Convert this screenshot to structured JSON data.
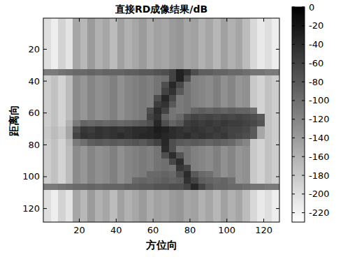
{
  "chart_data": {
    "type": "heatmap",
    "title": "直接RD成像结果/dB",
    "x_label": "方位向",
    "y_label": "距离向",
    "xlim": [
      0.5,
      128.5
    ],
    "ylim": [
      128.5,
      0.5
    ],
    "xticks": [
      20,
      40,
      60,
      80,
      100,
      120
    ],
    "yticks": [
      20,
      40,
      60,
      80,
      100,
      120
    ],
    "x": [
      2.5,
      6.5,
      10.5,
      14.5,
      18.5,
      22.5,
      26.5,
      30.5,
      34.5,
      38.5,
      42.5,
      46.5,
      50.5,
      54.5,
      58.5,
      62.5,
      66.5,
      70.5,
      74.5,
      78.5,
      82.5,
      86.5,
      90.5,
      94.5,
      98.5,
      102.5,
      106.5,
      110.5,
      114.5,
      118.5,
      122.5,
      126.5
    ],
    "y": [
      2.5,
      6.5,
      10.5,
      14.5,
      18.5,
      22.5,
      26.5,
      30.5,
      34.5,
      38.5,
      42.5,
      46.5,
      50.5,
      54.5,
      58.5,
      62.5,
      66.5,
      70.5,
      74.5,
      78.5,
      82.5,
      86.5,
      90.5,
      94.5,
      98.5,
      102.5,
      106.5,
      110.5,
      114.5,
      118.5,
      122.5,
      126.5
    ],
    "zlim": [
      -230,
      0
    ],
    "zticks": [
      0,
      -20,
      -40,
      -60,
      -80,
      -100,
      -120,
      -140,
      -160,
      -180,
      -200,
      -220
    ],
    "z": [
      [
        -200,
        -215,
        -190,
        -205,
        -150,
        -165,
        -140,
        -160,
        -150,
        -170,
        -145,
        -160,
        -150,
        -140,
        -155,
        -145,
        -150,
        -140,
        -135,
        -150,
        -145,
        -160,
        -150,
        -165,
        -145,
        -160,
        -150,
        -170,
        -195,
        -210,
        -200,
        -215
      ],
      [
        -200,
        -215,
        -190,
        -205,
        -150,
        -165,
        -140,
        -160,
        -150,
        -170,
        -145,
        -160,
        -150,
        -140,
        -155,
        -145,
        -150,
        -140,
        -135,
        -150,
        -145,
        -160,
        -150,
        -165,
        -145,
        -160,
        -150,
        -170,
        -195,
        -210,
        -200,
        -215
      ],
      [
        -200,
        -215,
        -190,
        -205,
        -150,
        -165,
        -140,
        -160,
        -150,
        -170,
        -145,
        -160,
        -150,
        -140,
        -155,
        -145,
        -150,
        -140,
        -135,
        -150,
        -145,
        -160,
        -150,
        -165,
        -145,
        -160,
        -150,
        -170,
        -195,
        -210,
        -200,
        -215
      ],
      [
        -200,
        -215,
        -190,
        -205,
        -150,
        -165,
        -140,
        -160,
        -150,
        -170,
        -145,
        -160,
        -150,
        -140,
        -155,
        -145,
        -150,
        -140,
        -135,
        -150,
        -145,
        -160,
        -150,
        -165,
        -145,
        -160,
        -150,
        -170,
        -195,
        -210,
        -200,
        -215
      ],
      [
        -200,
        -215,
        -190,
        -205,
        -150,
        -165,
        -140,
        -160,
        -150,
        -170,
        -145,
        -160,
        -150,
        -140,
        -155,
        -145,
        -150,
        -140,
        -135,
        -150,
        -145,
        -160,
        -150,
        -165,
        -145,
        -160,
        -150,
        -170,
        -195,
        -210,
        -200,
        -215
      ],
      [
        -200,
        -215,
        -190,
        -205,
        -150,
        -165,
        -140,
        -160,
        -150,
        -170,
        -145,
        -160,
        -150,
        -140,
        -155,
        -145,
        -150,
        -140,
        -135,
        -150,
        -145,
        -160,
        -150,
        -165,
        -145,
        -160,
        -150,
        -170,
        -195,
        -210,
        -200,
        -215
      ],
      [
        -200,
        -215,
        -190,
        -205,
        -150,
        -165,
        -140,
        -160,
        -150,
        -170,
        -145,
        -160,
        -150,
        -140,
        -155,
        -145,
        -150,
        -140,
        -135,
        -150,
        -145,
        -160,
        -150,
        -165,
        -145,
        -160,
        -150,
        -170,
        -195,
        -210,
        -200,
        -215
      ],
      [
        -200,
        -215,
        -190,
        -205,
        -150,
        -165,
        -140,
        -160,
        -150,
        -170,
        -145,
        -160,
        -150,
        -140,
        -155,
        -145,
        -150,
        -140,
        -135,
        -150,
        -145,
        -160,
        -150,
        -165,
        -145,
        -160,
        -150,
        -170,
        -195,
        -210,
        -200,
        -215
      ],
      [
        -110,
        -110,
        -105,
        -100,
        -95,
        -95,
        -90,
        -95,
        -90,
        -90,
        -90,
        -85,
        -85,
        -80,
        -80,
        -75,
        -70,
        -60,
        -30,
        -45,
        -70,
        -85,
        -85,
        -90,
        -90,
        -95,
        -95,
        -100,
        -105,
        -105,
        -110,
        -110
      ],
      [
        -185,
        -175,
        -190,
        -170,
        -125,
        -135,
        -120,
        -130,
        -125,
        -115,
        -130,
        -120,
        -115,
        -110,
        -115,
        -105,
        -100,
        -60,
        -30,
        -70,
        -115,
        -120,
        -125,
        -115,
        -130,
        -120,
        -135,
        -130,
        -180,
        -190,
        -175,
        -185
      ],
      [
        -185,
        -175,
        -190,
        -170,
        -125,
        -135,
        -120,
        -130,
        -125,
        -115,
        -130,
        -120,
        -115,
        -110,
        -115,
        -105,
        -70,
        -35,
        -65,
        -105,
        -115,
        -120,
        -125,
        -115,
        -130,
        -120,
        -135,
        -130,
        -180,
        -190,
        -175,
        -185
      ],
      [
        -185,
        -175,
        -190,
        -170,
        -125,
        -135,
        -120,
        -130,
        -125,
        -115,
        -130,
        -120,
        -115,
        -110,
        -115,
        -105,
        -60,
        -45,
        -80,
        -105,
        -115,
        -120,
        -125,
        -115,
        -130,
        -120,
        -135,
        -130,
        -180,
        -190,
        -175,
        -185
      ],
      [
        -185,
        -175,
        -190,
        -170,
        -125,
        -135,
        -120,
        -130,
        -125,
        -115,
        -130,
        -120,
        -115,
        -110,
        -115,
        -70,
        -35,
        -65,
        -110,
        -105,
        -115,
        -120,
        -125,
        -115,
        -130,
        -120,
        -135,
        -130,
        -180,
        -190,
        -175,
        -185
      ],
      [
        -185,
        -175,
        -190,
        -170,
        -125,
        -135,
        -120,
        -130,
        -125,
        -115,
        -130,
        -120,
        -115,
        -110,
        -115,
        -55,
        -45,
        -80,
        -110,
        -105,
        -115,
        -120,
        -125,
        -115,
        -130,
        -120,
        -135,
        -130,
        -180,
        -190,
        -175,
        -185
      ],
      [
        -185,
        -175,
        -190,
        -170,
        -125,
        -135,
        -120,
        -130,
        -125,
        -115,
        -130,
        -120,
        -115,
        -110,
        -70,
        -40,
        -60,
        -105,
        -110,
        -105,
        -90,
        -85,
        -90,
        -85,
        -90,
        -85,
        -90,
        -90,
        -100,
        -190,
        -175,
        -185
      ],
      [
        -185,
        -175,
        -190,
        -170,
        -125,
        -135,
        -120,
        -130,
        -125,
        -115,
        -130,
        -120,
        -115,
        -110,
        -60,
        -45,
        -90,
        -105,
        -95,
        -70,
        -60,
        -65,
        -60,
        -65,
        -60,
        -65,
        -60,
        -65,
        -70,
        -80,
        -175,
        -185
      ],
      [
        -185,
        -175,
        -190,
        -160,
        -110,
        -90,
        -95,
        -90,
        -95,
        -90,
        -95,
        -90,
        -85,
        -80,
        -70,
        -35,
        -70,
        -90,
        -80,
        -55,
        -50,
        -55,
        -50,
        -55,
        -50,
        -55,
        -55,
        -60,
        -65,
        -75,
        -175,
        -185
      ],
      [
        -180,
        -170,
        -180,
        -150,
        -70,
        -50,
        -55,
        -45,
        -50,
        -45,
        -50,
        -45,
        -40,
        -40,
        -35,
        -25,
        -30,
        -40,
        -45,
        -50,
        -45,
        -50,
        -55,
        -50,
        -55,
        -60,
        -60,
        -65,
        -80,
        -150,
        -175,
        -185
      ],
      [
        -180,
        -170,
        -180,
        -150,
        -60,
        -45,
        -50,
        -45,
        -50,
        -45,
        -40,
        -45,
        -40,
        -35,
        -35,
        -30,
        -35,
        -40,
        -45,
        -40,
        -50,
        -45,
        -50,
        -55,
        -50,
        -60,
        -65,
        -70,
        -80,
        -150,
        -175,
        -185
      ],
      [
        -185,
        -175,
        -190,
        -165,
        -110,
        -100,
        -85,
        -80,
        -85,
        -80,
        -85,
        -80,
        -75,
        -80,
        -70,
        -60,
        -35,
        -70,
        -80,
        -85,
        -80,
        -85,
        -90,
        -85,
        -90,
        -95,
        -110,
        -120,
        -180,
        -190,
        -175,
        -185
      ],
      [
        -185,
        -175,
        -190,
        -170,
        -125,
        -135,
        -120,
        -130,
        -125,
        -115,
        -130,
        -120,
        -115,
        -110,
        -115,
        -105,
        -40,
        -70,
        -110,
        -105,
        -115,
        -120,
        -125,
        -115,
        -130,
        -120,
        -135,
        -130,
        -180,
        -190,
        -175,
        -185
      ],
      [
        -185,
        -175,
        -190,
        -170,
        -125,
        -135,
        -120,
        -130,
        -125,
        -115,
        -130,
        -120,
        -115,
        -110,
        -115,
        -105,
        -70,
        -40,
        -75,
        -105,
        -115,
        -120,
        -125,
        -115,
        -130,
        -120,
        -135,
        -130,
        -180,
        -190,
        -175,
        -185
      ],
      [
        -185,
        -175,
        -190,
        -170,
        -125,
        -135,
        -120,
        -130,
        -125,
        -115,
        -130,
        -120,
        -115,
        -110,
        -115,
        -105,
        -100,
        -65,
        -40,
        -105,
        -115,
        -120,
        -125,
        -115,
        -130,
        -120,
        -135,
        -130,
        -180,
        -190,
        -175,
        -185
      ],
      [
        -185,
        -175,
        -190,
        -170,
        -125,
        -135,
        -120,
        -130,
        -125,
        -115,
        -130,
        -120,
        -115,
        -110,
        -115,
        -105,
        -100,
        -105,
        -50,
        -60,
        -115,
        -120,
        -125,
        -115,
        -130,
        -120,
        -135,
        -130,
        -180,
        -190,
        -175,
        -185
      ],
      [
        -185,
        -175,
        -190,
        -170,
        -125,
        -135,
        -120,
        -130,
        -125,
        -115,
        -130,
        -120,
        -115,
        -110,
        -95,
        -95,
        -90,
        -95,
        -70,
        -40,
        -80,
        -95,
        -100,
        -115,
        -130,
        -120,
        -135,
        -130,
        -180,
        -190,
        -175,
        -185
      ],
      [
        -185,
        -175,
        -190,
        -170,
        -125,
        -135,
        -120,
        -130,
        -125,
        -115,
        -130,
        -120,
        -95,
        -90,
        -95,
        -90,
        -85,
        -90,
        -85,
        -45,
        -60,
        -85,
        -90,
        -95,
        -90,
        -100,
        -135,
        -130,
        -180,
        -190,
        -175,
        -185
      ],
      [
        -110,
        -110,
        -105,
        -100,
        -95,
        -95,
        -90,
        -95,
        -90,
        -90,
        -90,
        -85,
        -85,
        -80,
        -80,
        -75,
        -75,
        -70,
        -70,
        -60,
        -35,
        -60,
        -80,
        -90,
        -90,
        -95,
        -95,
        -100,
        -105,
        -105,
        -110,
        -110
      ],
      [
        -200,
        -215,
        -190,
        -205,
        -150,
        -165,
        -140,
        -160,
        -150,
        -170,
        -145,
        -160,
        -150,
        -140,
        -155,
        -145,
        -150,
        -140,
        -135,
        -150,
        -145,
        -160,
        -150,
        -165,
        -145,
        -160,
        -150,
        -170,
        -195,
        -210,
        -200,
        -215
      ],
      [
        -200,
        -215,
        -190,
        -205,
        -150,
        -165,
        -140,
        -160,
        -150,
        -170,
        -145,
        -160,
        -150,
        -140,
        -155,
        -145,
        -150,
        -140,
        -135,
        -150,
        -145,
        -160,
        -150,
        -165,
        -145,
        -160,
        -150,
        -170,
        -195,
        -210,
        -200,
        -215
      ],
      [
        -200,
        -215,
        -190,
        -205,
        -150,
        -165,
        -140,
        -160,
        -150,
        -170,
        -145,
        -160,
        -150,
        -140,
        -155,
        -145,
        -150,
        -140,
        -135,
        -150,
        -145,
        -160,
        -150,
        -165,
        -145,
        -160,
        -150,
        -170,
        -195,
        -210,
        -200,
        -215
      ],
      [
        -200,
        -215,
        -190,
        -205,
        -150,
        -165,
        -140,
        -160,
        -150,
        -170,
        -145,
        -160,
        -150,
        -140,
        -155,
        -145,
        -150,
        -140,
        -135,
        -150,
        -145,
        -160,
        -150,
        -165,
        -145,
        -160,
        -150,
        -170,
        -195,
        -210,
        -200,
        -215
      ],
      [
        -200,
        -215,
        -190,
        -205,
        -150,
        -165,
        -140,
        -160,
        -150,
        -170,
        -145,
        -160,
        -150,
        -140,
        -155,
        -145,
        -150,
        -140,
        -135,
        -150,
        -145,
        -160,
        -150,
        -165,
        -145,
        -160,
        -150,
        -170,
        -195,
        -210,
        -200,
        -215
      ]
    ]
  }
}
